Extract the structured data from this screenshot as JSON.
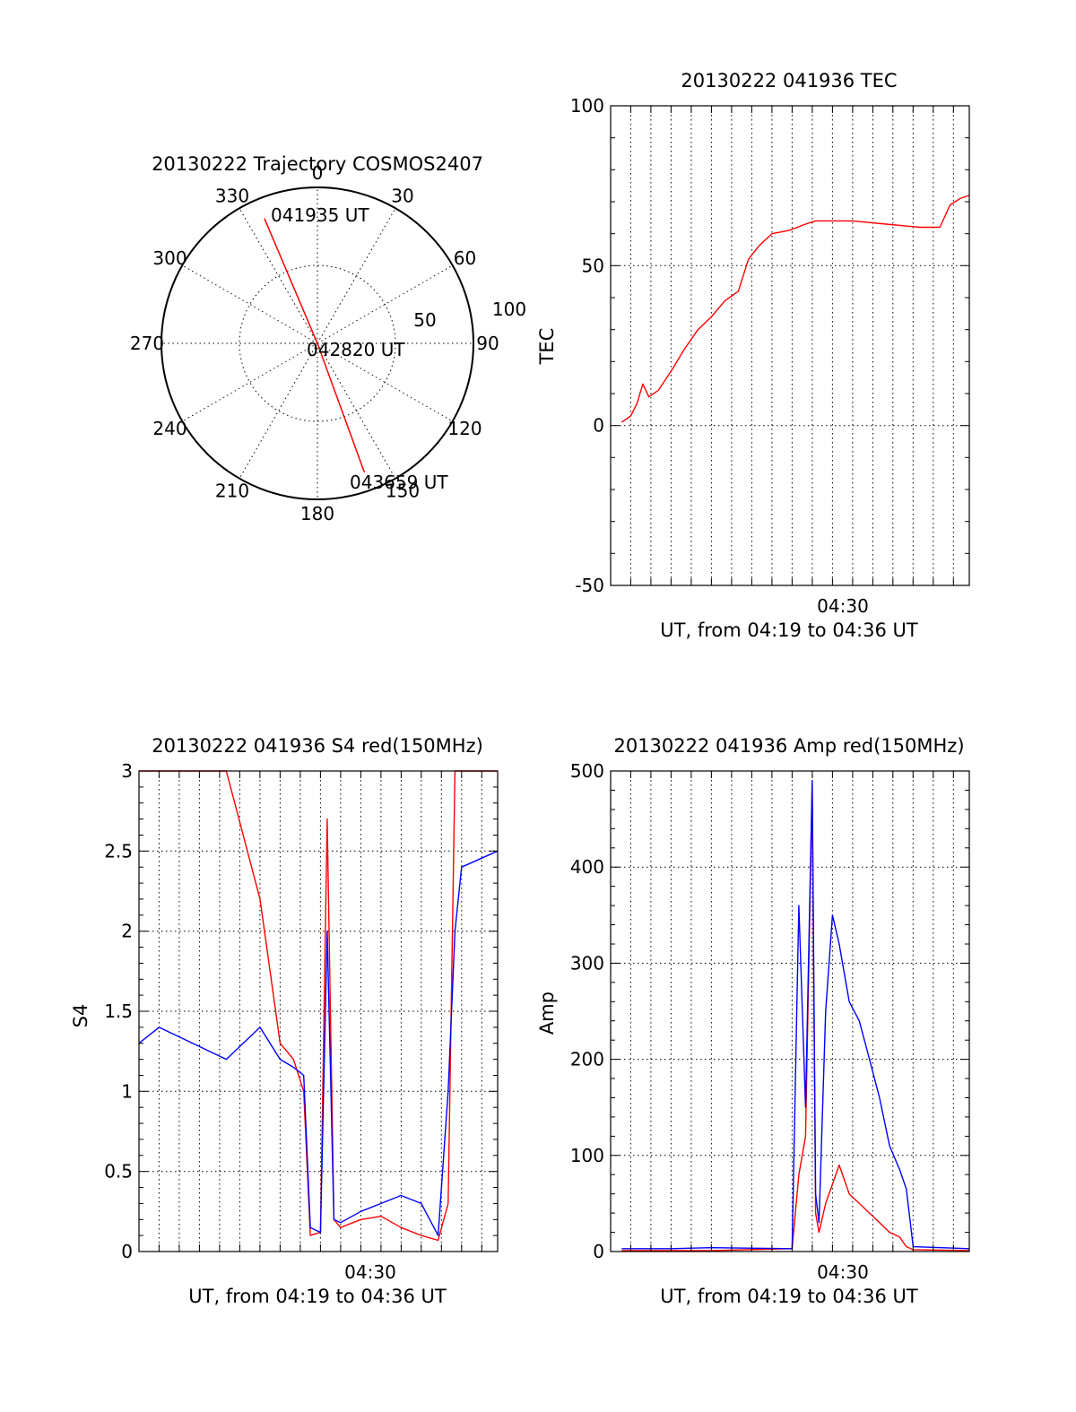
{
  "chart_data": [
    {
      "id": "polar",
      "type": "scatter",
      "subtype": "polar-trajectory",
      "title": "20130222 Trajectory COSMOS2407",
      "azimuth_labels": [
        "0",
        "30",
        "60",
        "90",
        "120",
        "150",
        "180",
        "210",
        "240",
        "270",
        "300",
        "330"
      ],
      "radial_labels": [
        "50",
        "100"
      ],
      "radial_max": 100,
      "color": "#ff0000",
      "trajectory": [
        {
          "azimuth": 337,
          "r": 87,
          "label": "041935 UT"
        },
        {
          "azimuth": 90,
          "r": 0,
          "label": "042820 UT"
        },
        {
          "azimuth": 160,
          "r": 88,
          "label": "043659 UT"
        }
      ]
    },
    {
      "id": "tec",
      "type": "line",
      "title": "20130222 041936 TEC",
      "xlabel": "UT, from 04:19 to 04:36 UT",
      "ylabel": "TEC",
      "xlim": [
        4.3167,
        4.6131
      ],
      "ylim": [
        -50,
        100
      ],
      "yticks": [
        "-50",
        "0",
        "50",
        "100"
      ],
      "xtick_label": "04:30",
      "xtick_value": 4.5,
      "grid": true,
      "series": [
        {
          "color": "#ff0000",
          "x": [
            4.3258,
            4.3333,
            4.3386,
            4.3433,
            4.3483,
            4.3561,
            4.3667,
            4.3778,
            4.3889,
            4.4,
            4.4111,
            4.4222,
            4.4306,
            4.4389,
            4.4444,
            4.45,
            4.4639,
            4.4778,
            4.4861,
            4.4944,
            4.5167,
            4.5444,
            4.5722,
            4.5889,
            4.5972,
            4.6056,
            4.6131
          ],
          "y": [
            1,
            3,
            7,
            13,
            9,
            11,
            17,
            24,
            30,
            34,
            39,
            42,
            52,
            56,
            58,
            60,
            61,
            63,
            64,
            64,
            64,
            63,
            62,
            62,
            69,
            71,
            72
          ]
        }
      ]
    },
    {
      "id": "s4",
      "type": "line",
      "title": "20130222 041936 S4 red(150MHz)",
      "xlabel": "UT, from 04:19 to 04:36 UT",
      "ylabel": "S4",
      "xlim": [
        4.3167,
        4.6131
      ],
      "ylim": [
        0,
        3
      ],
      "yticks": [
        "0",
        "0.5",
        "1",
        "1.5",
        "2",
        "2.5",
        "3"
      ],
      "xtick_label": "04:30",
      "xtick_value": 4.5,
      "grid": true,
      "series": [
        {
          "color": "#ff0000",
          "x": [
            4.3167,
            4.3333,
            4.3611,
            4.3889,
            4.4167,
            4.4333,
            4.4444,
            4.4528,
            4.4583,
            4.4667,
            4.4722,
            4.4778,
            4.4833,
            4.5,
            4.5167,
            4.5333,
            4.55,
            4.5639,
            4.5722,
            4.5778,
            4.5833,
            4.6131
          ],
          "y": [
            3.0,
            3.0,
            3.0,
            3.0,
            2.2,
            1.3,
            1.2,
            1.0,
            0.1,
            0.12,
            2.7,
            0.2,
            0.15,
            0.2,
            0.22,
            0.15,
            0.1,
            0.07,
            0.3,
            3.0,
            3.0,
            3.0
          ]
        },
        {
          "color": "#0000ff",
          "x": [
            4.3167,
            4.3333,
            4.3611,
            4.3889,
            4.4167,
            4.4333,
            4.4444,
            4.4528,
            4.4583,
            4.4667,
            4.4722,
            4.4778,
            4.4833,
            4.5,
            4.5167,
            4.5333,
            4.55,
            4.5639,
            4.5722,
            4.5778,
            4.5833,
            4.6131
          ],
          "y": [
            1.3,
            1.4,
            1.3,
            1.2,
            1.4,
            1.2,
            1.15,
            1.1,
            0.15,
            0.12,
            2.0,
            0.2,
            0.18,
            0.25,
            0.3,
            0.35,
            0.3,
            0.1,
            1.0,
            2.0,
            2.4,
            2.5
          ]
        }
      ]
    },
    {
      "id": "amp",
      "type": "line",
      "title": "20130222 041936 Amp red(150MHz)",
      "xlabel": "UT, from 04:19 to 04:36 UT",
      "ylabel": "Amp",
      "xlim": [
        4.3167,
        4.6131
      ],
      "ylim": [
        0,
        500
      ],
      "yticks": [
        "0",
        "100",
        "200",
        "300",
        "400",
        "500"
      ],
      "xtick_label": "04:30",
      "xtick_value": 4.5,
      "grid": true,
      "series": [
        {
          "color": "#ff0000",
          "x": [
            4.3258,
            4.3667,
            4.4,
            4.4667,
            4.4722,
            4.4778,
            4.4833,
            4.4861,
            4.4889,
            4.4944,
            4.5,
            4.5056,
            4.5139,
            4.5222,
            4.5306,
            4.5389,
            4.5472,
            4.5556,
            4.5611,
            4.5667,
            4.6131
          ],
          "y": [
            1,
            1,
            1,
            3,
            80,
            120,
            485,
            40,
            20,
            50,
            70,
            90,
            60,
            50,
            40,
            30,
            20,
            15,
            5,
            2,
            1
          ]
        },
        {
          "color": "#0000ff",
          "x": [
            4.3258,
            4.3667,
            4.4,
            4.4667,
            4.4722,
            4.4778,
            4.4833,
            4.4861,
            4.4889,
            4.4944,
            4.5,
            4.5056,
            4.5139,
            4.5222,
            4.5306,
            4.5389,
            4.5472,
            4.5556,
            4.5611,
            4.5667,
            4.6131
          ],
          "y": [
            3,
            3,
            4,
            3,
            360,
            150,
            490,
            60,
            30,
            250,
            350,
            320,
            260,
            240,
            200,
            160,
            110,
            85,
            65,
            5,
            3
          ]
        }
      ]
    }
  ]
}
